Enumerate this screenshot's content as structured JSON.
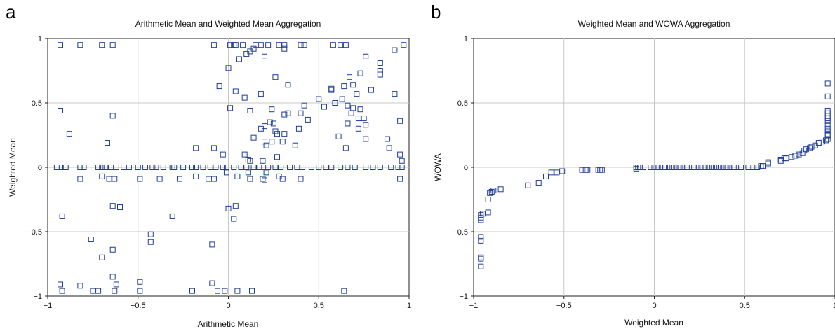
{
  "chart_data": [
    {
      "type": "scatter",
      "panel_letter": "a",
      "title": "Arithmetic Mean and Weighted Mean Aggregation",
      "xlabel": "Arithmetic Mean",
      "ylabel": "Weighted Mean",
      "xlim": [
        -1,
        1
      ],
      "ylim": [
        -1,
        1
      ],
      "xticks": [
        -1,
        -0.5,
        0,
        0.5,
        1
      ],
      "yticks": [
        -1,
        -0.5,
        0,
        0.5,
        1
      ],
      "xtick_labels": [
        "−1",
        "−0.5",
        "0",
        "0.5",
        "1"
      ],
      "ytick_labels": [
        "−1",
        "−0.5",
        "0",
        "0.5",
        "1"
      ],
      "grid": true,
      "marker": "open-square",
      "marker_color": "#1f3d99",
      "points": [
        [
          -0.93,
          0.95
        ],
        [
          -0.82,
          0.95
        ],
        [
          -0.7,
          0.95
        ],
        [
          -0.64,
          0.95
        ],
        [
          -0.93,
          0.44
        ],
        [
          -0.64,
          0.4
        ],
        [
          -0.88,
          0.26
        ],
        [
          -0.67,
          0.19
        ],
        [
          -0.95,
          0.0
        ],
        [
          -0.93,
          0.0
        ],
        [
          -0.9,
          0.0
        ],
        [
          -0.82,
          0.0
        ],
        [
          -0.8,
          0.0
        ],
        [
          -0.72,
          0.0
        ],
        [
          -0.7,
          0.0
        ],
        [
          -0.68,
          0.0
        ],
        [
          -0.65,
          0.0
        ],
        [
          -0.62,
          0.0
        ],
        [
          -0.58,
          0.0
        ],
        [
          -0.55,
          0.0
        ],
        [
          -0.5,
          0.0
        ],
        [
          -0.46,
          0.0
        ],
        [
          -0.42,
          0.0
        ],
        [
          -0.4,
          0.0
        ],
        [
          -0.36,
          0.0
        ],
        [
          -0.31,
          0.0
        ],
        [
          -0.3,
          0.0
        ],
        [
          -0.25,
          0.0
        ],
        [
          -0.2,
          0.0
        ],
        [
          -0.18,
          0.0
        ],
        [
          -0.14,
          0.0
        ],
        [
          -0.1,
          0.0
        ],
        [
          -0.07,
          0.0
        ],
        [
          -0.03,
          0.0
        ],
        [
          -0.01,
          0.0
        ],
        [
          -0.92,
          -0.38
        ],
        [
          -0.82,
          -0.09
        ],
        [
          -0.7,
          -0.07
        ],
        [
          -0.66,
          -0.09
        ],
        [
          -0.63,
          -0.09
        ],
        [
          -0.49,
          -0.09
        ],
        [
          -0.38,
          -0.09
        ],
        [
          -0.27,
          -0.09
        ],
        [
          -0.18,
          -0.07
        ],
        [
          -0.11,
          -0.09
        ],
        [
          -0.08,
          -0.09
        ],
        [
          -0.64,
          -0.3
        ],
        [
          -0.6,
          -0.31
        ],
        [
          -0.31,
          -0.38
        ],
        [
          -0.43,
          -0.52
        ],
        [
          -0.43,
          -0.58
        ],
        [
          -0.76,
          -0.56
        ],
        [
          -0.64,
          -0.64
        ],
        [
          -0.7,
          -0.7
        ],
        [
          -0.64,
          -0.85
        ],
        [
          -0.62,
          -0.91
        ],
        [
          -0.49,
          -0.89
        ],
        [
          -0.09,
          -0.6
        ],
        [
          -0.93,
          -0.91
        ],
        [
          -0.92,
          -0.96
        ],
        [
          -0.82,
          -0.92
        ],
        [
          -0.75,
          -0.96
        ],
        [
          -0.72,
          -0.96
        ],
        [
          -0.63,
          -0.96
        ],
        [
          -0.49,
          -0.96
        ],
        [
          -0.2,
          -0.96
        ],
        [
          -0.09,
          -0.9
        ],
        [
          -0.06,
          -0.96
        ],
        [
          -0.02,
          -0.96
        ],
        [
          0.05,
          -0.96
        ],
        [
          0.13,
          -0.96
        ],
        [
          0.64,
          -0.96
        ],
        [
          -0.08,
          0.95
        ],
        [
          0.01,
          0.95
        ],
        [
          0.03,
          0.95
        ],
        [
          0.04,
          0.95
        ],
        [
          0.08,
          0.95
        ],
        [
          0.15,
          0.95
        ],
        [
          0.18,
          0.95
        ],
        [
          0.22,
          0.95
        ],
        [
          0.28,
          0.95
        ],
        [
          0.31,
          0.95
        ],
        [
          0.4,
          0.95
        ],
        [
          0.42,
          0.95
        ],
        [
          0.58,
          0.95
        ],
        [
          0.62,
          0.95
        ],
        [
          0.65,
          0.95
        ],
        [
          0.97,
          0.95
        ],
        [
          0.1,
          0.88
        ],
        [
          0.12,
          0.9
        ],
        [
          0.14,
          0.92
        ],
        [
          0.31,
          0.92
        ],
        [
          0.2,
          0.86
        ],
        [
          0.26,
          0.7
        ],
        [
          0.0,
          0.77
        ],
        [
          0.06,
          0.84
        ],
        [
          0.92,
          0.91
        ],
        [
          0.76,
          0.86
        ],
        [
          0.84,
          0.81
        ],
        [
          -0.05,
          0.63
        ],
        [
          0.04,
          0.59
        ],
        [
          0.09,
          0.54
        ],
        [
          0.18,
          0.57
        ],
        [
          0.33,
          0.64
        ],
        [
          0.5,
          0.53
        ],
        [
          0.57,
          0.61
        ],
        [
          0.57,
          0.6
        ],
        [
          0.64,
          0.63
        ],
        [
          0.67,
          0.7
        ],
        [
          0.69,
          0.64
        ],
        [
          0.71,
          0.57
        ],
        [
          0.79,
          0.6
        ],
        [
          0.84,
          0.75
        ],
        [
          0.84,
          0.72
        ],
        [
          0.92,
          0.57
        ],
        [
          0.73,
          0.73
        ],
        [
          0.01,
          0.46
        ],
        [
          0.12,
          0.44
        ],
        [
          0.24,
          0.45
        ],
        [
          0.31,
          0.41
        ],
        [
          0.33,
          0.42
        ],
        [
          0.4,
          0.42
        ],
        [
          0.42,
          0.48
        ],
        [
          0.53,
          0.47
        ],
        [
          0.59,
          0.5
        ],
        [
          0.63,
          0.53
        ],
        [
          0.66,
          0.48
        ],
        [
          0.68,
          0.42
        ],
        [
          0.69,
          0.46
        ],
        [
          0.73,
          0.45
        ],
        [
          0.75,
          0.38
        ],
        [
          0.76,
          0.33
        ],
        [
          0.72,
          0.38
        ],
        [
          0.72,
          0.3
        ],
        [
          0.66,
          0.34
        ],
        [
          0.18,
          0.3
        ],
        [
          0.2,
          0.32
        ],
        [
          0.23,
          0.35
        ],
        [
          0.25,
          0.34
        ],
        [
          0.26,
          0.28
        ],
        [
          0.27,
          0.26
        ],
        [
          0.31,
          0.26
        ],
        [
          0.3,
          0.2
        ],
        [
          0.14,
          0.23
        ],
        [
          0.2,
          0.2
        ],
        [
          0.21,
          0.17
        ],
        [
          0.24,
          0.2
        ],
        [
          0.37,
          0.17
        ],
        [
          0.39,
          0.3
        ],
        [
          0.44,
          0.37
        ],
        [
          0.61,
          0.24
        ],
        [
          0.65,
          0.15
        ],
        [
          0.76,
          0.22
        ],
        [
          0.88,
          0.22
        ],
        [
          0.95,
          0.36
        ],
        [
          -0.18,
          0.15
        ],
        [
          -0.08,
          0.15
        ],
        [
          -0.03,
          0.1
        ],
        [
          0.09,
          0.1
        ],
        [
          0.11,
          0.06
        ],
        [
          0.12,
          0.05
        ],
        [
          0.19,
          0.05
        ],
        [
          0.27,
          0.08
        ],
        [
          0.89,
          0.15
        ],
        [
          0.95,
          0.1
        ],
        [
          0.03,
          0.0
        ],
        [
          0.07,
          0.0
        ],
        [
          0.1,
          0.0
        ],
        [
          0.14,
          0.0
        ],
        [
          0.17,
          0.0
        ],
        [
          0.2,
          0.0
        ],
        [
          0.22,
          0.0
        ],
        [
          0.26,
          0.0
        ],
        [
          0.29,
          0.0
        ],
        [
          0.34,
          0.0
        ],
        [
          0.38,
          0.0
        ],
        [
          0.41,
          0.0
        ],
        [
          0.46,
          0.0
        ],
        [
          0.5,
          0.0
        ],
        [
          0.54,
          0.0
        ],
        [
          0.57,
          0.0
        ],
        [
          0.62,
          0.0
        ],
        [
          0.66,
          0.0
        ],
        [
          0.7,
          0.0
        ],
        [
          0.76,
          0.0
        ],
        [
          0.8,
          0.0
        ],
        [
          0.84,
          0.0
        ],
        [
          0.9,
          0.0
        ],
        [
          0.94,
          0.0
        ],
        [
          0.96,
          0.0
        ],
        [
          -0.01,
          -0.04
        ],
        [
          0.11,
          -0.04
        ],
        [
          0.21,
          -0.04
        ],
        [
          0.05,
          -0.07
        ],
        [
          0.12,
          -0.09
        ],
        [
          0.19,
          -0.09
        ],
        [
          0.2,
          -0.1
        ],
        [
          0.28,
          -0.07
        ],
        [
          0.3,
          -0.09
        ],
        [
          0.4,
          -0.09
        ],
        [
          0.95,
          -0.09
        ],
        [
          0.96,
          0.05
        ],
        [
          0.0,
          -0.32
        ],
        [
          0.04,
          -0.3
        ],
        [
          0.03,
          -0.4
        ]
      ]
    },
    {
      "type": "scatter",
      "panel_letter": "b",
      "title": "Weighted Mean and WOWA Aggregation",
      "xlabel": "Weighted Mean",
      "ylabel": "WOWA",
      "xlim": [
        -1,
        1
      ],
      "ylim": [
        -1,
        1
      ],
      "xticks": [
        -1,
        -0.5,
        0,
        0.5,
        1
      ],
      "yticks": [
        -1,
        -0.5,
        0,
        0.5,
        1
      ],
      "xtick_labels": [
        "−1",
        "−0.5",
        "0",
        "0.5",
        "1"
      ],
      "ytick_labels": [
        "−1",
        "−0.5",
        "0",
        "0.5",
        "1"
      ],
      "grid": true,
      "marker": "open-square",
      "marker_color": "#1f3d99",
      "points": [
        [
          -0.96,
          -0.77
        ],
        [
          -0.96,
          -0.71
        ],
        [
          -0.96,
          -0.7
        ],
        [
          -0.96,
          -0.57
        ],
        [
          -0.96,
          -0.54
        ],
        [
          -0.96,
          -0.41
        ],
        [
          -0.96,
          -0.39
        ],
        [
          -0.96,
          -0.37
        ],
        [
          -0.95,
          -0.36
        ],
        [
          -0.92,
          -0.35
        ],
        [
          -0.92,
          -0.25
        ],
        [
          -0.91,
          -0.2
        ],
        [
          -0.9,
          -0.19
        ],
        [
          -0.89,
          -0.18
        ],
        [
          -0.85,
          -0.17
        ],
        [
          -0.7,
          -0.14
        ],
        [
          -0.64,
          -0.12
        ],
        [
          -0.6,
          -0.07
        ],
        [
          -0.57,
          -0.04
        ],
        [
          -0.54,
          -0.04
        ],
        [
          -0.51,
          -0.03
        ],
        [
          -0.4,
          -0.02
        ],
        [
          -0.38,
          -0.02
        ],
        [
          -0.37,
          -0.02
        ],
        [
          -0.31,
          -0.02
        ],
        [
          -0.3,
          -0.02
        ],
        [
          -0.29,
          -0.02
        ],
        [
          -0.1,
          -0.01
        ],
        [
          -0.1,
          0.0
        ],
        [
          -0.09,
          0.0
        ],
        [
          -0.08,
          0.0
        ],
        [
          -0.06,
          0.0
        ],
        [
          -0.02,
          0.0
        ],
        [
          0.0,
          0.0
        ],
        [
          0.02,
          0.0
        ],
        [
          0.04,
          0.0
        ],
        [
          0.06,
          0.0
        ],
        [
          0.08,
          0.0
        ],
        [
          0.1,
          0.0
        ],
        [
          0.12,
          0.0
        ],
        [
          0.14,
          0.0
        ],
        [
          0.16,
          0.0
        ],
        [
          0.18,
          0.0
        ],
        [
          0.2,
          0.0
        ],
        [
          0.22,
          0.0
        ],
        [
          0.24,
          0.0
        ],
        [
          0.26,
          0.0
        ],
        [
          0.28,
          0.0
        ],
        [
          0.3,
          0.0
        ],
        [
          0.32,
          0.0
        ],
        [
          0.34,
          0.0
        ],
        [
          0.36,
          0.0
        ],
        [
          0.38,
          0.0
        ],
        [
          0.4,
          0.0
        ],
        [
          0.42,
          0.0
        ],
        [
          0.44,
          0.0
        ],
        [
          0.46,
          0.0
        ],
        [
          0.48,
          0.0
        ],
        [
          0.52,
          0.0
        ],
        [
          0.55,
          0.0
        ],
        [
          0.57,
          0.0
        ],
        [
          0.59,
          0.01
        ],
        [
          0.6,
          0.01
        ],
        [
          0.63,
          0.03
        ],
        [
          0.63,
          0.04
        ],
        [
          0.7,
          0.05
        ],
        [
          0.7,
          0.06
        ],
        [
          0.72,
          0.07
        ],
        [
          0.73,
          0.07
        ],
        [
          0.76,
          0.08
        ],
        [
          0.78,
          0.09
        ],
        [
          0.8,
          0.1
        ],
        [
          0.82,
          0.11
        ],
        [
          0.83,
          0.13
        ],
        [
          0.84,
          0.14
        ],
        [
          0.86,
          0.15
        ],
        [
          0.87,
          0.16
        ],
        [
          0.89,
          0.17
        ],
        [
          0.91,
          0.19
        ],
        [
          0.93,
          0.2
        ],
        [
          0.95,
          0.21
        ],
        [
          0.96,
          0.22
        ],
        [
          0.96,
          0.24
        ],
        [
          0.96,
          0.25
        ],
        [
          0.96,
          0.28
        ],
        [
          0.96,
          0.3
        ],
        [
          0.96,
          0.33
        ],
        [
          0.96,
          0.36
        ],
        [
          0.96,
          0.38
        ],
        [
          0.96,
          0.4
        ],
        [
          0.96,
          0.42
        ],
        [
          0.96,
          0.44
        ],
        [
          0.96,
          0.55
        ],
        [
          0.96,
          0.65
        ]
      ]
    }
  ]
}
